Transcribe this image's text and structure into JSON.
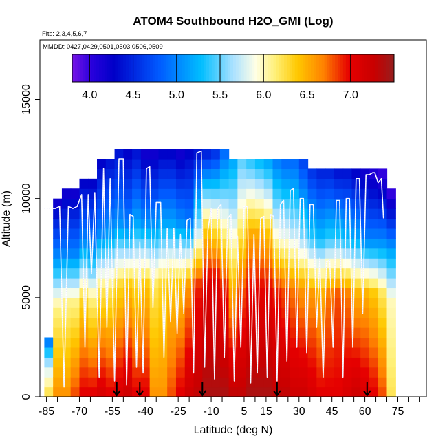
{
  "chart_data": {
    "type": "heatmap",
    "title": "ATOM4 Southbound H2O_GMI (Log)",
    "flights_label": "Flts: 2,3,4,5,6,7",
    "dates_label": "MMDD: 0427,0429,0501,0503,0506,0509",
    "xlabel": "Latitude (deg N)",
    "ylabel": "Altitude (m)",
    "xlim": [
      -88,
      88
    ],
    "ylim": [
      0,
      18000
    ],
    "x_ticks": [
      -85,
      -70,
      -55,
      -40,
      -25,
      -10,
      5,
      15,
      30,
      45,
      60,
      75
    ],
    "x_ticks_minor": [
      -80,
      -65,
      -50,
      -35,
      -20,
      -5,
      10,
      20,
      25,
      35,
      40,
      50,
      55,
      65,
      70,
      80,
      85
    ],
    "y_ticks": [
      0,
      5000,
      10000,
      15000
    ],
    "colorbar": {
      "min": 3.8,
      "max": 7.5,
      "ticks": [
        "4.0",
        "4.5",
        "5.0",
        "5.5",
        "6.0",
        "6.5",
        "7.0"
      ],
      "tick_values": [
        4.0,
        4.5,
        5.0,
        5.5,
        6.0,
        6.5,
        7.0
      ]
    },
    "curtain": {
      "lat_start": -86,
      "lat_step": 4,
      "alt_step": 500,
      "columns": [
        {
          "lat": -86,
          "top": 3000,
          "surface": [
            6.2,
            5.8
          ],
          "upper": [
            5.5,
            5.0
          ]
        },
        {
          "lat": -82,
          "top": 9800,
          "surface": [
            6.6,
            6.1
          ],
          "upper": [
            5.1,
            4.2
          ]
        },
        {
          "lat": -78,
          "top": 10500,
          "surface": [
            6.6,
            6.1
          ],
          "upper": [
            5.0,
            4.2
          ]
        },
        {
          "lat": -74,
          "top": 10500,
          "surface": [
            6.8,
            6.1
          ],
          "upper": [
            5.0,
            4.2
          ]
        },
        {
          "lat": -70,
          "top": 11000,
          "surface": [
            7.0,
            6.3
          ],
          "upper": [
            5.1,
            4.3
          ]
        },
        {
          "lat": -66,
          "top": 11000,
          "surface": [
            7.0,
            6.1
          ],
          "upper": [
            5.0,
            4.3
          ]
        },
        {
          "lat": -62,
          "top": 12000,
          "surface": [
            7.1,
            6.2
          ],
          "upper": [
            5.0,
            4.3
          ]
        },
        {
          "lat": -58,
          "top": 12000,
          "surface": [
            7.0,
            6.2
          ],
          "upper": [
            5.1,
            4.4
          ]
        },
        {
          "lat": -54,
          "top": 12500,
          "surface": [
            7.1,
            6.3
          ],
          "upper": [
            5.1,
            4.4
          ]
        },
        {
          "lat": -50,
          "top": 12500,
          "surface": [
            7.2,
            6.4
          ],
          "upper": [
            5.0,
            4.3
          ]
        },
        {
          "lat": -46,
          "top": 12500,
          "surface": [
            7.0,
            6.3
          ],
          "upper": [
            5.2,
            4.4
          ]
        },
        {
          "lat": -42,
          "top": 12500,
          "surface": [
            7.0,
            6.4
          ],
          "upper": [
            5.1,
            4.2
          ]
        },
        {
          "lat": -38,
          "top": 12500,
          "surface": [
            6.6,
            6.2
          ],
          "upper": [
            5.1,
            4.2
          ]
        },
        {
          "lat": -34,
          "top": 12500,
          "surface": [
            6.6,
            6.3
          ],
          "upper": [
            5.2,
            4.3
          ]
        },
        {
          "lat": -30,
          "top": 12500,
          "surface": [
            6.8,
            6.4
          ],
          "upper": [
            5.2,
            4.3
          ]
        },
        {
          "lat": -26,
          "top": 12500,
          "surface": [
            7.0,
            6.4
          ],
          "upper": [
            5.1,
            4.2
          ]
        },
        {
          "lat": -22,
          "top": 12500,
          "surface": [
            7.2,
            6.6
          ],
          "upper": [
            5.0,
            4.3
          ]
        },
        {
          "lat": -18,
          "top": 12500,
          "surface": [
            7.3,
            6.9
          ],
          "upper": [
            5.6,
            4.4
          ]
        },
        {
          "lat": -14,
          "top": 12500,
          "surface": [
            7.4,
            7.1
          ],
          "upper": [
            6.3,
            4.5
          ]
        },
        {
          "lat": -10,
          "top": 12500,
          "surface": [
            7.4,
            7.1
          ],
          "upper": [
            6.2,
            4.6
          ]
        },
        {
          "lat": -6,
          "top": 12500,
          "surface": [
            7.4,
            6.9
          ],
          "upper": [
            6.0,
            4.9
          ]
        },
        {
          "lat": -2,
          "top": 12000,
          "surface": [
            7.3,
            6.5
          ],
          "upper": [
            5.9,
            5.2
          ]
        },
        {
          "lat": 2,
          "top": 12000,
          "surface": [
            7.3,
            6.8
          ],
          "upper": [
            6.2,
            5.5
          ]
        },
        {
          "lat": 6,
          "top": 12000,
          "surface": [
            7.4,
            7.0
          ],
          "upper": [
            6.5,
            5.4
          ]
        },
        {
          "lat": 10,
          "top": 12000,
          "surface": [
            7.4,
            7.0
          ],
          "upper": [
            6.5,
            5.3
          ]
        },
        {
          "lat": 14,
          "top": 12000,
          "surface": [
            7.4,
            7.0
          ],
          "upper": [
            6.4,
            5.2
          ]
        },
        {
          "lat": 18,
          "top": 12000,
          "surface": [
            7.3,
            6.9
          ],
          "upper": [
            5.9,
            5.0
          ]
        },
        {
          "lat": 22,
          "top": 12000,
          "surface": [
            7.3,
            6.8
          ],
          "upper": [
            5.8,
            4.9
          ]
        },
        {
          "lat": 26,
          "top": 12000,
          "surface": [
            7.2,
            6.7
          ],
          "upper": [
            5.7,
            4.9
          ]
        },
        {
          "lat": 30,
          "top": 12000,
          "surface": [
            7.2,
            6.6
          ],
          "upper": [
            5.5,
            4.7
          ]
        },
        {
          "lat": 34,
          "top": 11500,
          "surface": [
            7.1,
            6.6
          ],
          "upper": [
            5.4,
            4.6
          ]
        },
        {
          "lat": 38,
          "top": 11500,
          "surface": [
            7.0,
            6.5
          ],
          "upper": [
            5.3,
            4.5
          ]
        },
        {
          "lat": 42,
          "top": 11500,
          "surface": [
            7.0,
            6.7
          ],
          "upper": [
            5.4,
            4.5
          ]
        },
        {
          "lat": 46,
          "top": 11500,
          "surface": [
            7.0,
            6.8
          ],
          "upper": [
            5.4,
            4.4
          ]
        },
        {
          "lat": 50,
          "top": 11500,
          "surface": [
            7.1,
            6.7
          ],
          "upper": [
            5.3,
            4.4
          ]
        },
        {
          "lat": 54,
          "top": 11500,
          "surface": [
            7.2,
            6.5
          ],
          "upper": [
            5.2,
            4.3
          ]
        },
        {
          "lat": 58,
          "top": 11500,
          "surface": [
            7.1,
            6.5
          ],
          "upper": [
            5.0,
            4.2
          ]
        },
        {
          "lat": 62,
          "top": 11500,
          "surface": [
            7.0,
            6.4
          ],
          "upper": [
            5.0,
            4.1
          ]
        },
        {
          "lat": 66,
          "top": 11500,
          "surface": [
            6.8,
            6.2
          ],
          "upper": [
            5.0,
            4.0
          ]
        },
        {
          "lat": 70,
          "top": 10500,
          "surface": [
            6.2,
            6.0
          ],
          "upper": [
            5.2,
            4.0
          ]
        }
      ]
    },
    "flight_track": [
      [
        -86,
        9500
      ],
      [
        -84,
        9500
      ],
      [
        -81,
        9500
      ],
      [
        -79,
        9600
      ],
      [
        -77,
        500
      ],
      [
        -75,
        9600
      ],
      [
        -73,
        9500
      ],
      [
        -71,
        9600
      ],
      [
        -69,
        10200
      ],
      [
        -67.5,
        2500
      ],
      [
        -66,
        10200
      ],
      [
        -64.5,
        6200
      ],
      [
        -63,
        10300
      ],
      [
        -61,
        1000
      ],
      [
        -59,
        11500
      ],
      [
        -57.5,
        3500
      ],
      [
        -56,
        11000
      ],
      [
        -54,
        800
      ],
      [
        -52,
        12000
      ],
      [
        -50,
        12000
      ],
      [
        -48.5,
        600
      ],
      [
        -47,
        9200
      ],
      [
        -45.5,
        9100
      ],
      [
        -44,
        1500
      ],
      [
        -42.5,
        7800
      ],
      [
        -41,
        1200
      ],
      [
        -39.5,
        11500
      ],
      [
        -38,
        11600
      ],
      [
        -36.5,
        4500
      ],
      [
        -35,
        9800
      ],
      [
        -33,
        9800
      ],
      [
        -31.5,
        2000
      ],
      [
        -30,
        8500
      ],
      [
        -28.5,
        3800
      ],
      [
        -27,
        8500
      ],
      [
        -25.5,
        3200
      ],
      [
        -24,
        8200
      ],
      [
        -22.5,
        4200
      ],
      [
        -21,
        8900
      ],
      [
        -19.5,
        9000
      ],
      [
        -18,
        1200
      ],
      [
        -16.5,
        12300
      ],
      [
        -14.5,
        12400
      ],
      [
        -13,
        1500
      ],
      [
        -11.5,
        8400
      ],
      [
        -10,
        9500
      ],
      [
        -8.5,
        900
      ],
      [
        -7,
        9500
      ],
      [
        -5.5,
        9700
      ],
      [
        -4,
        2000
      ],
      [
        -2.5,
        9000
      ],
      [
        -1,
        9200
      ],
      [
        0.5,
        800
      ],
      [
        2,
        8100
      ],
      [
        3.5,
        2500
      ],
      [
        5,
        9600
      ],
      [
        6.5,
        9600
      ],
      [
        8,
        700
      ],
      [
        9.5,
        8200
      ],
      [
        11,
        1200
      ],
      [
        12.5,
        9000
      ],
      [
        14,
        9100
      ],
      [
        15.5,
        1000
      ],
      [
        17,
        9200
      ],
      [
        18.5,
        9100
      ],
      [
        20,
        800
      ],
      [
        21.5,
        9700
      ],
      [
        23,
        9900
      ],
      [
        24.5,
        1800
      ],
      [
        26,
        10400
      ],
      [
        27.5,
        10500
      ],
      [
        29,
        2500
      ],
      [
        30.5,
        10000
      ],
      [
        32,
        10000
      ],
      [
        33.5,
        2200
      ],
      [
        35,
        9700
      ],
      [
        36.5,
        9700
      ],
      [
        38,
        3500
      ],
      [
        39.5,
        7000
      ],
      [
        41,
        1000
      ],
      [
        42.5,
        6800
      ],
      [
        44,
        6900
      ],
      [
        45.5,
        2500
      ],
      [
        47,
        9900
      ],
      [
        48.5,
        9900
      ],
      [
        50,
        1000
      ],
      [
        51.5,
        10000
      ],
      [
        53,
        10000
      ],
      [
        54.5,
        2500
      ],
      [
        56,
        11000
      ],
      [
        57.5,
        11000
      ],
      [
        59,
        4200
      ],
      [
        60.5,
        11200
      ],
      [
        62,
        11200
      ],
      [
        63.5,
        11300
      ],
      [
        64.5,
        11300
      ],
      [
        66,
        10800
      ],
      [
        67.5,
        11000
      ],
      [
        68.5,
        9000
      ]
    ],
    "profile_markers": [
      -53,
      -42.5,
      -14,
      20,
      61
    ]
  }
}
